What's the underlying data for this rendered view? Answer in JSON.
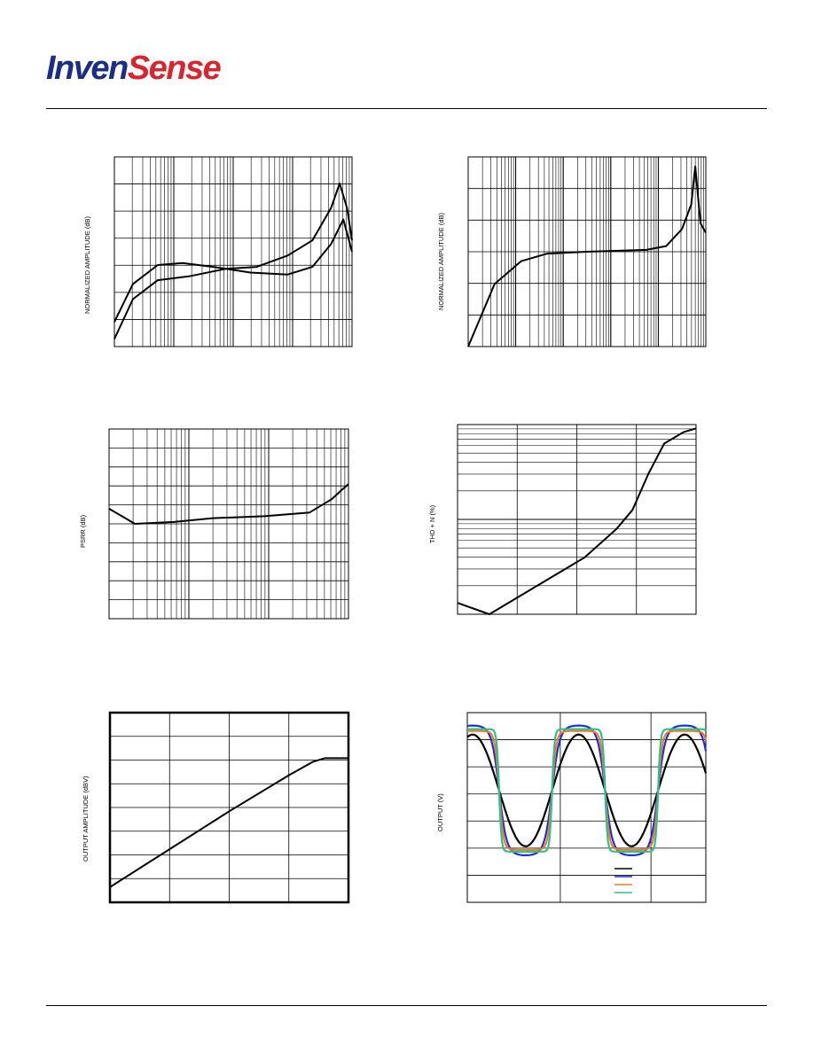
{
  "header": {
    "logo_part1": "Inven",
    "logo_part2": "Sense"
  },
  "colors": {
    "logo_blue": "#1c2d86",
    "logo_red": "#d8262e",
    "black": "#000000",
    "blue": "#1f2fd8",
    "orange": "#f07a2a",
    "green": "#2ec08a"
  },
  "chart_data": [
    {
      "type": "line",
      "id": "freq-response-1",
      "x_scale": "log",
      "ylabel": "NORMALIZED AMPLITUDE (dB)",
      "grid": true,
      "series": [
        {
          "values": [
            [
              0,
              0.13
            ],
            [
              0.15,
              0.33
            ],
            [
              0.35,
              0.43
            ],
            [
              0.55,
              0.44
            ],
            [
              0.8,
              0.42
            ],
            [
              1.1,
              0.39
            ],
            [
              1.4,
              0.38
            ],
            [
              1.6,
              0.42
            ],
            [
              1.75,
              0.54
            ],
            [
              1.85,
              0.67
            ],
            [
              1.92,
              0.5
            ]
          ]
        },
        {
          "values": [
            [
              0,
              0.04
            ],
            [
              0.15,
              0.25
            ],
            [
              0.35,
              0.35
            ],
            [
              0.6,
              0.37
            ],
            [
              0.9,
              0.41
            ],
            [
              1.15,
              0.42
            ],
            [
              1.4,
              0.48
            ],
            [
              1.6,
              0.56
            ],
            [
              1.75,
              0.73
            ],
            [
              1.82,
              0.86
            ],
            [
              1.88,
              0.73
            ],
            [
              1.92,
              0.56
            ]
          ]
        }
      ]
    },
    {
      "type": "line",
      "id": "freq-response-2",
      "x_scale": "log",
      "ylabel": "NORMALIZED AMPLITUDE (dB)",
      "grid": true,
      "series": [
        {
          "values": [
            [
              0,
              0.0
            ],
            [
              0.2,
              0.33
            ],
            [
              0.4,
              0.45
            ],
            [
              0.6,
              0.49
            ],
            [
              0.9,
              0.5
            ],
            [
              1.35,
              0.51
            ],
            [
              1.5,
              0.53
            ],
            [
              1.62,
              0.62
            ],
            [
              1.69,
              0.75
            ],
            [
              1.72,
              0.95
            ],
            [
              1.76,
              0.65
            ],
            [
              1.8,
              0.6
            ]
          ]
        }
      ]
    },
    {
      "type": "line",
      "id": "psrr",
      "x_scale": "log",
      "ylabel": "PSRR (dB)",
      "grid": true,
      "series": [
        {
          "values": [
            [
              0,
              0.58
            ],
            [
              0.2,
              0.5
            ],
            [
              0.5,
              0.51
            ],
            [
              0.8,
              0.53
            ],
            [
              1.2,
              0.54
            ],
            [
              1.55,
              0.56
            ],
            [
              1.72,
              0.63
            ],
            [
              1.8,
              0.68
            ],
            [
              1.85,
              0.71
            ]
          ]
        }
      ]
    },
    {
      "type": "line",
      "id": "thd-n",
      "x_scale": "log",
      "ylabel": "THD + N (%)",
      "grid": true,
      "series": [
        {
          "values": [
            [
              0,
              0.06
            ],
            [
              0.2,
              0.0
            ],
            [
              0.5,
              0.15
            ],
            [
              0.8,
              0.3
            ],
            [
              1.0,
              0.45
            ],
            [
              1.1,
              0.55
            ],
            [
              1.2,
              0.74
            ],
            [
              1.3,
              0.9
            ],
            [
              1.42,
              0.96
            ],
            [
              1.5,
              0.98
            ]
          ]
        }
      ]
    },
    {
      "type": "line",
      "id": "output-amplitude",
      "ylabel": "OUTPUT AMPLITUDE (dBV)",
      "grid": true,
      "series": [
        {
          "values": [
            [
              0,
              0.08
            ],
            [
              0.5,
              0.48
            ],
            [
              0.75,
              0.67
            ],
            [
              0.85,
              0.74
            ],
            [
              0.9,
              0.76
            ],
            [
              1.0,
              0.76
            ]
          ]
        }
      ]
    },
    {
      "type": "line",
      "id": "output-waveform",
      "ylabel": "OUTPUT (V)",
      "grid": true,
      "legend": "bottom-right",
      "series": [
        {
          "color": "#000000",
          "amplitude": 0.31
        },
        {
          "color": "#1f2fd8",
          "amplitude": 0.36
        },
        {
          "color": "#f07a2a",
          "amplitude": 0.33
        },
        {
          "color": "#2ec08a",
          "amplitude": 0.34
        }
      ]
    }
  ]
}
